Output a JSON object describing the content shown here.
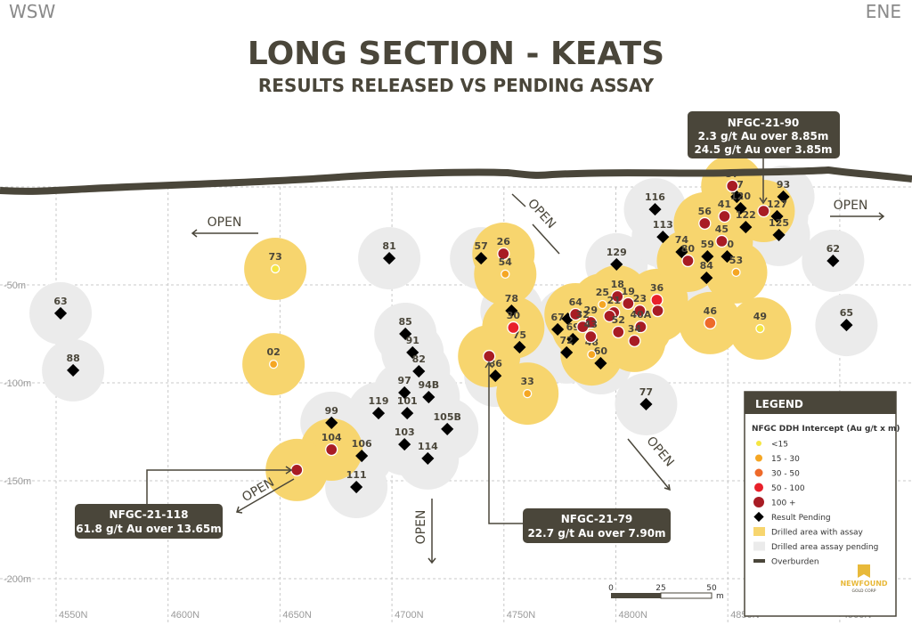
{
  "title": "LONG SECTION - KEATS",
  "subtitle": "RESULTS RELEASED VS PENDING ASSAY",
  "direction_left": "WSW",
  "direction_right": "ENE",
  "colors": {
    "overburden": "#4a463a",
    "assay_area": "#f7d56e",
    "pending_area": "#ebebeb",
    "lt15": "#f5e642",
    "15-30": "#f5a623",
    "30-50": "#ee6a2a",
    "50-100": "#e8202a",
    "100+": "#a81c24",
    "pending": "#000000"
  },
  "axes": {
    "x_labels": [
      "4550N",
      "4600N",
      "4650N",
      "4700N",
      "4750N",
      "4800N",
      "4850N",
      "4900N"
    ],
    "x_values": [
      4550,
      4600,
      4650,
      4700,
      4750,
      4800,
      4850,
      4900
    ],
    "y_labels": [
      "-50m",
      "-100m",
      "-150m",
      "-200m"
    ],
    "y_values": [
      -50,
      -100,
      -150,
      -200
    ]
  },
  "open_label": "OPEN",
  "holes": [
    {
      "id": "63",
      "cat": "pending",
      "n": 4552,
      "elev": -64.5
    },
    {
      "id": "88",
      "cat": "pending",
      "n": 4557.6,
      "elev": -93.6
    },
    {
      "id": "81",
      "cat": "pending",
      "n": 4698.8,
      "elev": -36.4
    },
    {
      "id": "57",
      "cat": "pending",
      "n": 4739.8,
      "elev": -36.4
    },
    {
      "id": "85",
      "cat": "pending",
      "n": 4706,
      "elev": -75
    },
    {
      "id": "91",
      "cat": "pending",
      "n": 4709.2,
      "elev": -84.5
    },
    {
      "id": "82",
      "cat": "pending",
      "n": 4712,
      "elev": -94.1
    },
    {
      "id": "97",
      "cat": "pending",
      "n": 4705.6,
      "elev": -105
    },
    {
      "id": "94B",
      "cat": "pending",
      "n": 4716.4,
      "elev": -107.3
    },
    {
      "id": "101",
      "cat": "pending",
      "n": 4706.8,
      "elev": -115.5
    },
    {
      "id": "119",
      "cat": "pending",
      "n": 4694,
      "elev": -115.5
    },
    {
      "id": "99",
      "cat": "pending",
      "n": 4673,
      "elev": -120.4
    },
    {
      "id": "105B",
      "cat": "pending",
      "n": 4724.7,
      "elev": -123.6
    },
    {
      "id": "103",
      "cat": "pending",
      "n": 4705.6,
      "elev": -131.4
    },
    {
      "id": "114",
      "cat": "pending",
      "n": 4716,
      "elev": -138.6
    },
    {
      "id": "106",
      "cat": "pending",
      "n": 4686.5,
      "elev": -137.3
    },
    {
      "id": "111",
      "cat": "pending",
      "n": 4684.1,
      "elev": -153.2
    },
    {
      "id": "86",
      "cat": "pending",
      "n": 4746.2,
      "elev": -96.4
    },
    {
      "id": "75",
      "cat": "pending",
      "n": 4757,
      "elev": -81.8
    },
    {
      "id": "78",
      "cat": "pending",
      "n": 4753.4,
      "elev": -63.2
    },
    {
      "id": "67",
      "cat": "pending",
      "n": 4774,
      "elev": -72.7
    },
    {
      "id": "",
      "cat": "pending",
      "n": 4778.5,
      "elev": -67.3
    },
    {
      "id": "69",
      "cat": "pending",
      "n": 4780.8,
      "elev": -77.7
    },
    {
      "id": "72",
      "cat": "pending",
      "n": 4778,
      "elev": -84.5
    },
    {
      "id": "60",
      "cat": "pending",
      "n": 4793.2,
      "elev": -90
    },
    {
      "id": "129",
      "cat": "pending",
      "n": 4800.3,
      "elev": -39.5
    },
    {
      "id": "116",
      "cat": "pending",
      "n": 4817.5,
      "elev": -11.4
    },
    {
      "id": "113",
      "cat": "pending",
      "n": 4821,
      "elev": -25.5
    },
    {
      "id": "74",
      "cat": "pending",
      "n": 4829.4,
      "elev": -33.2
    },
    {
      "id": "59",
      "cat": "pending",
      "n": 4840.9,
      "elev": -35.5
    },
    {
      "id": "84",
      "cat": "pending",
      "n": 4840.5,
      "elev": -46.4
    },
    {
      "id": "70",
      "cat": "pending",
      "n": 4849.7,
      "elev": -35.5
    },
    {
      "id": "87",
      "cat": "pending",
      "n": 4854,
      "elev": -5
    },
    {
      "id": "120",
      "cat": "pending",
      "n": 4855.7,
      "elev": -10.9
    },
    {
      "id": "122",
      "cat": "pending",
      "n": 4858,
      "elev": -20.5
    },
    {
      "id": "93",
      "cat": "pending",
      "n": 4874.8,
      "elev": -5
    },
    {
      "id": "127",
      "cat": "pending",
      "n": 4872,
      "elev": -15
    },
    {
      "id": "125",
      "cat": "pending",
      "n": 4872.8,
      "elev": -24.5
    },
    {
      "id": "62",
      "cat": "pending",
      "n": 4897,
      "elev": -37.7
    },
    {
      "id": "65",
      "cat": "pending",
      "n": 4903,
      "elev": -70.5
    },
    {
      "id": "77",
      "cat": "pending",
      "n": 4813.5,
      "elev": -110.9
    },
    {
      "id": "73",
      "cat": "lt15",
      "n": 4647.9,
      "elev": -41.8
    },
    {
      "id": "02",
      "cat": "15-30",
      "n": 4647.1,
      "elev": -90.5
    },
    {
      "id": "104",
      "cat": "100+",
      "n": 4673,
      "elev": -134.1
    },
    {
      "id": "",
      "cat": "100+",
      "n": 4657.5,
      "elev": -144.5
    },
    {
      "id": "26",
      "cat": "100+",
      "n": 4749.8,
      "elev": -34.1
    },
    {
      "id": "54",
      "cat": "15-30",
      "n": 4750.6,
      "elev": -44.5
    },
    {
      "id": "30",
      "cat": "50-100",
      "n": 4754.2,
      "elev": -71.8
    },
    {
      "id": "",
      "cat": "100+",
      "n": 4743.4,
      "elev": -86.4
    },
    {
      "id": "33",
      "cat": "15-30",
      "n": 4760.5,
      "elev": -105.5
    },
    {
      "id": "48",
      "cat": "15-30",
      "n": 4789.2,
      "elev": -85.5
    },
    {
      "id": "25",
      "cat": "15-30",
      "n": 4794,
      "elev": -60
    },
    {
      "id": "18",
      "cat": "100+",
      "n": 4800.7,
      "elev": -55.9
    },
    {
      "id": "19",
      "cat": "100+",
      "n": 4805.5,
      "elev": -59.5
    },
    {
      "id": "23",
      "cat": "100+",
      "n": 4810.7,
      "elev": -63.2
    },
    {
      "id": "36",
      "cat": "50-100",
      "n": 4818.3,
      "elev": -57.7
    },
    {
      "id": "",
      "cat": "100+",
      "n": 4818.7,
      "elev": -63.2
    },
    {
      "id": "21",
      "cat": "100+",
      "n": 4799.1,
      "elev": -64.1
    },
    {
      "id": "",
      "cat": "100+",
      "n": 4797.2,
      "elev": -65.9
    },
    {
      "id": "29",
      "cat": "100+",
      "n": 4788.8,
      "elev": -69.1
    },
    {
      "id": "64",
      "cat": "100+",
      "n": 4782,
      "elev": -65
    },
    {
      "id": "32",
      "cat": "100+",
      "n": 4785.2,
      "elev": -71.4
    },
    {
      "id": "43",
      "cat": "100+",
      "n": 4788.8,
      "elev": -76.4
    },
    {
      "id": "52",
      "cat": "100+",
      "n": 4801.1,
      "elev": -74.1
    },
    {
      "id": "40A",
      "cat": "100+",
      "n": 4811.1,
      "elev": -71.4
    },
    {
      "id": "34",
      "cat": "100+",
      "n": 4808.3,
      "elev": -78.6
    },
    {
      "id": "56",
      "cat": "100+",
      "n": 4839.7,
      "elev": -18.6
    },
    {
      "id": "41",
      "cat": "100+",
      "n": 4848.5,
      "elev": -15
    },
    {
      "id": "45",
      "cat": "100+",
      "n": 4847.3,
      "elev": -27.7
    },
    {
      "id": "37",
      "cat": "100+",
      "n": 4852,
      "elev": 0.5
    },
    {
      "id": "",
      "cat": "100+",
      "n": 4866,
      "elev": -12.3
    },
    {
      "id": "80",
      "cat": "100+",
      "n": 4832.2,
      "elev": -37.7
    },
    {
      "id": "53",
      "cat": "15-30",
      "n": 4853.7,
      "elev": -43.6
    },
    {
      "id": "46",
      "cat": "30-50",
      "n": 4842.1,
      "elev": -69.5
    },
    {
      "id": "49",
      "cat": "lt15",
      "n": 4864.4,
      "elev": -72.3
    }
  ],
  "callouts": {
    "c90": {
      "line1": "NFGC-21-90",
      "line2": "2.3 g/t Au over 8.85m",
      "line3": "24.5 g/t Au over 3.85m"
    },
    "c118": {
      "line1": "NFGC-21-118",
      "line2": "61.8 g/t Au over 13.65m"
    },
    "c79": {
      "line1": "NFGC-21-79",
      "line2": "22.7 g/t Au over 7.90m"
    }
  },
  "scale_bar": {
    "t0": "0",
    "t25": "25",
    "t50": "50",
    "unit": "m"
  },
  "legend": {
    "header": "LEGEND",
    "subtitle": "NFGC DDH Intercept (Au g/t x m)",
    "items": [
      "<15",
      "15 - 30",
      "30 - 50",
      "50 - 100",
      "100 +",
      "Result Pending",
      "Drilled area with assay",
      "Drilled area assay pending",
      "Overburden"
    ],
    "logo_text": "NEWFOUND",
    "logo_sub": "GOLD CORP"
  }
}
